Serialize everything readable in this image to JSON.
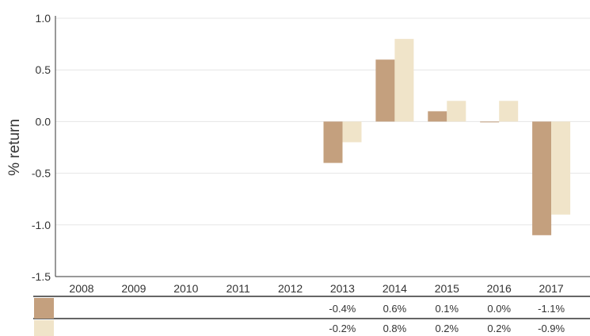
{
  "chart_data": {
    "type": "bar",
    "ylabel": "% return",
    "ylim": [
      -1.5,
      1.0
    ],
    "yticks": [
      "1.0",
      "0.5",
      "0.0",
      "-0.5",
      "-1.0",
      "-1.5"
    ],
    "ytick_values": [
      1.0,
      0.5,
      0.0,
      -0.5,
      -1.0,
      -1.5
    ],
    "categories": [
      "2008",
      "2009",
      "2010",
      "2011",
      "2012",
      "2013",
      "2014",
      "2015",
      "2016",
      "2017"
    ],
    "grid": true,
    "legend": "none",
    "series": [
      {
        "color": "#c4a07e",
        "values": [
          null,
          null,
          null,
          null,
          null,
          -0.4,
          0.6,
          0.1,
          0.0,
          -1.1
        ],
        "table_labels": [
          "",
          "",
          "",
          "",
          "",
          "-0.4%",
          "0.6%",
          "0.1%",
          "0.0%",
          "-1.1%"
        ]
      },
      {
        "color": "#f0e4c9",
        "values": [
          null,
          null,
          null,
          null,
          null,
          -0.2,
          0.8,
          0.2,
          0.2,
          -0.9
        ],
        "table_labels": [
          "",
          "",
          "",
          "",
          "",
          "-0.2%",
          "0.8%",
          "0.2%",
          "0.2%",
          "-0.9%"
        ]
      }
    ]
  },
  "colors": {
    "grid": "#e6e6e6",
    "axis": "#333333",
    "text": "#333333"
  }
}
